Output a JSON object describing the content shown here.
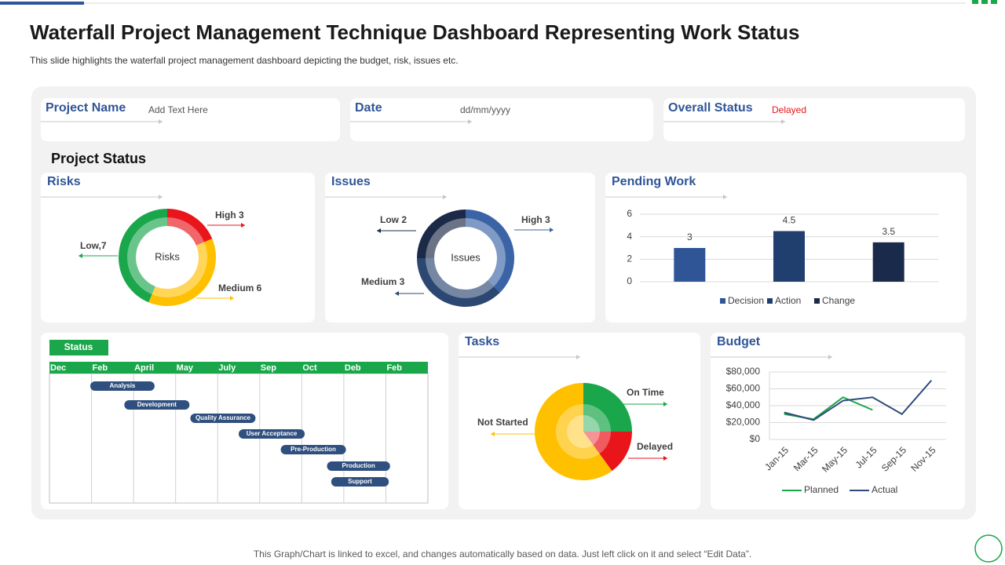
{
  "header": {
    "title": "Waterfall Project Management Technique Dashboard Representing Work Status",
    "subtitle": "This slide highlights the waterfall project management dashboard depicting the budget, risk, issues etc."
  },
  "info_cards": [
    {
      "label": "Project Name",
      "value": "Add Text Here"
    },
    {
      "label": "Date",
      "value": "dd/mm/yyyy"
    },
    {
      "label": "Overall Status",
      "value": "Delayed"
    }
  ],
  "section_title": "Project Status",
  "footer": "This Graph/Chart is linked to excel,  and changes automatically based on data. Just left click on it and select “Edit Data”.",
  "chart_data": [
    {
      "type": "donut",
      "title": "Risks",
      "center_label": "Risks",
      "values": [
        3,
        6,
        7
      ],
      "value_labels": [
        "High 3",
        "Medium 6",
        "Low,7"
      ],
      "colors": [
        "#e8151b",
        "#ffc000",
        "#1aa64a"
      ]
    },
    {
      "type": "donut",
      "title": "Issues",
      "center_label": "Issues",
      "values": [
        3,
        3,
        2
      ],
      "value_labels": [
        "High 3",
        "Medium 3",
        "Low 2"
      ],
      "colors": [
        "#3a64a6",
        "#2c4872",
        "#1c2a48"
      ]
    },
    {
      "type": "bar",
      "title": "Pending Work",
      "categories": [
        "Decision",
        "Action",
        "Change"
      ],
      "values": [
        3,
        4.5,
        3.5
      ],
      "colors": [
        "#2f5597",
        "#203f6e",
        "#1a2a4a"
      ],
      "ylim": [
        0,
        6
      ],
      "yticks": [
        0,
        2,
        4,
        6
      ],
      "grid": true
    },
    {
      "type": "gantt",
      "title": "Status",
      "columns": [
        "Dec",
        "Feb",
        "April",
        "May",
        "July",
        "Sep",
        "Oct",
        "Deb",
        "Feb"
      ],
      "xlim": [
        0,
        9
      ],
      "tasks": [
        {
          "name": "Analysis",
          "start": 0.97,
          "end": 2.5
        },
        {
          "name": "Development",
          "start": 1.78,
          "end": 3.33
        },
        {
          "name": "Quality Assurance",
          "start": 3.35,
          "end": 4.9
        },
        {
          "name": "User Acceptance",
          "start": 4.5,
          "end": 6.07
        },
        {
          "name": "Pre-Production",
          "start": 5.5,
          "end": 7.05
        },
        {
          "name": "Production",
          "start": 6.6,
          "end": 8.1
        },
        {
          "name": "Support",
          "start": 6.7,
          "end": 8.07
        }
      ],
      "color": "#2f4f7f"
    },
    {
      "type": "pie",
      "title": "Tasks",
      "categories": [
        "On Time",
        "Delayed",
        "Not Started"
      ],
      "values": [
        25,
        15,
        60
      ],
      "colors": [
        "#1aa64a",
        "#e8151b",
        "#ffc000"
      ]
    },
    {
      "type": "line",
      "title": "Budget",
      "categories": [
        "Jan-15",
        "Mar-15",
        "May-15",
        "Jul-15",
        "Sep-15",
        "Nov-15"
      ],
      "series": [
        {
          "name": "Planned",
          "color": "#1aa64a",
          "values": [
            30000,
            24000,
            50000,
            35000,
            null,
            null
          ]
        },
        {
          "name": "Actual",
          "color": "#2e4a7a",
          "values": [
            32000,
            23000,
            46000,
            50000,
            30000,
            70000
          ]
        }
      ],
      "ylim": [
        0,
        80000
      ],
      "yticks": [
        {
          "value": 0,
          "label": "$0"
        },
        {
          "value": 20000,
          "label": "$20,000"
        },
        {
          "value": 40000,
          "label": "$40,000"
        },
        {
          "value": 60000,
          "label": "$60,000"
        },
        {
          "value": 80000,
          "label": "$80,000"
        }
      ],
      "grid": true
    }
  ]
}
